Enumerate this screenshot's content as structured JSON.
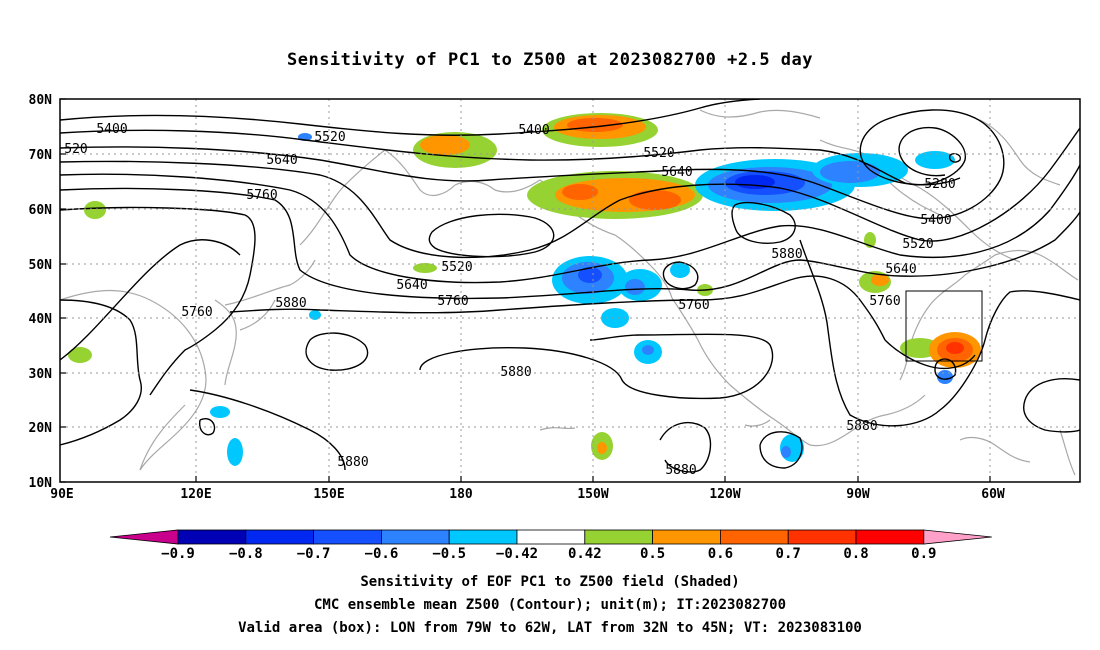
{
  "title": "Sensitivity of PC1 to Z500 at 2023082700 +2.5 day",
  "map": {
    "lat_ticks": [
      "80N",
      "70N",
      "60N",
      "50N",
      "40N",
      "30N",
      "20N",
      "10N"
    ],
    "lon_ticks": [
      "90E",
      "120E",
      "150E",
      "180",
      "150W",
      "120W",
      "90W",
      "60W"
    ],
    "valid_box": {
      "lon_west": "79W",
      "lon_east": "62W",
      "lat_south": "32N",
      "lat_north": "45N"
    },
    "contour_color": "#000000",
    "coast_color": "#a8a8a8",
    "contour_labels": [
      {
        "value": "5400"
      },
      {
        "value": "5520"
      },
      {
        "value": "5640"
      },
      {
        "value": "5760"
      },
      {
        "value": "5880"
      },
      {
        "value": "520"
      },
      {
        "value": "5400"
      },
      {
        "value": "5520"
      },
      {
        "value": "5640"
      },
      {
        "value": "5520"
      },
      {
        "value": "5640"
      },
      {
        "value": "5760"
      },
      {
        "value": "5760"
      },
      {
        "value": "5880"
      },
      {
        "value": "5880"
      },
      {
        "value": "5760"
      },
      {
        "value": "5880"
      },
      {
        "value": "5280"
      },
      {
        "value": "5400"
      },
      {
        "value": "5520"
      },
      {
        "value": "5640"
      },
      {
        "value": "5760"
      },
      {
        "value": "5880"
      },
      {
        "value": "5880"
      }
    ]
  },
  "colorbar": {
    "labels": [
      "−0.9",
      "−0.8",
      "−0.7",
      "−0.6",
      "−0.5",
      "−0.42",
      "0.42",
      "0.5",
      "0.6",
      "0.7",
      "0.8",
      "0.9"
    ],
    "colors": [
      "#c8008c",
      "#0000b4",
      "#0028f0",
      "#1450ff",
      "#2d82ff",
      "#00c8ff",
      "#ffffff",
      "#96d232",
      "#ff9600",
      "#ff6400",
      "#ff3200",
      "#ff0000",
      "#ffa0c8"
    ]
  },
  "captions": {
    "line1": "Sensitivity of EOF PC1 to Z500 field (Shaded)",
    "line2": "CMC ensemble mean Z500 (Contour); unit(m); IT:2023082700",
    "line3": "Valid area (box): LON from 79W to 62W, LAT from 32N to 45N; VT: 2023083100"
  }
}
